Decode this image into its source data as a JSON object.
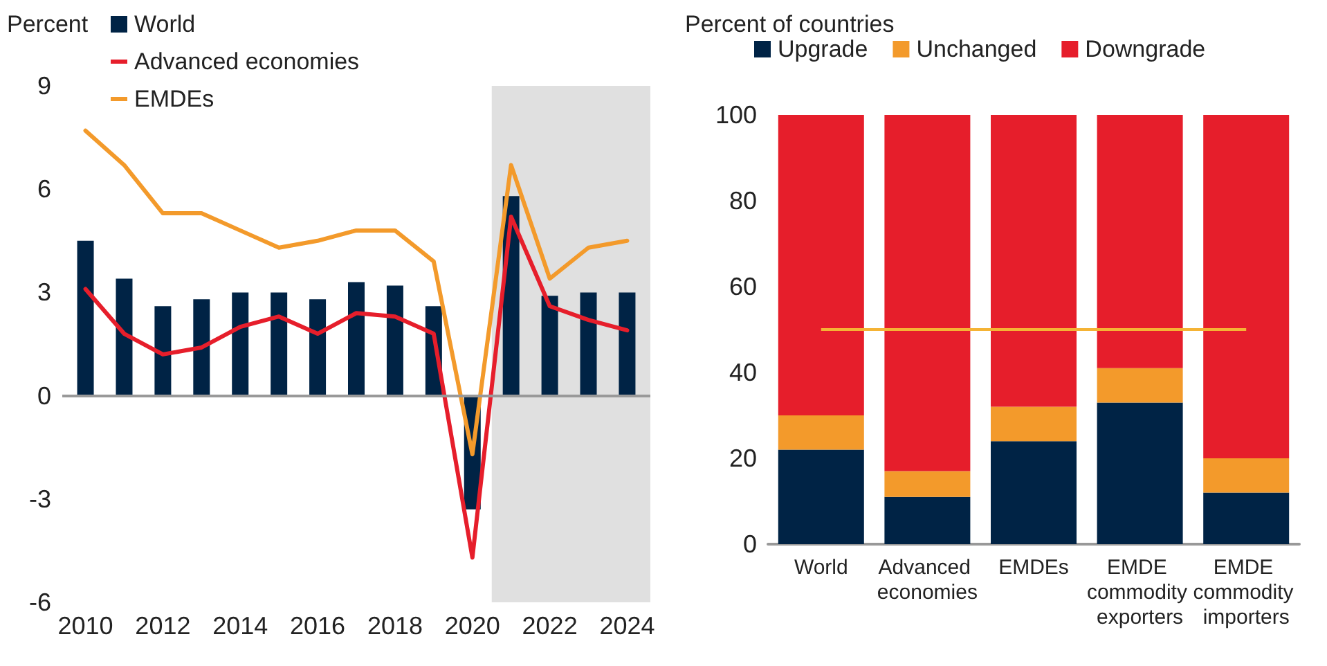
{
  "chart_data": [
    {
      "type": "bar",
      "ylabel": "Percent",
      "x": [
        2010,
        2011,
        2012,
        2013,
        2014,
        2015,
        2016,
        2017,
        2018,
        2019,
        2020,
        2021,
        2022,
        2023,
        2024
      ],
      "series": [
        {
          "name": "World",
          "type": "bar",
          "color": "#002345",
          "values": [
            4.5,
            3.4,
            2.6,
            2.8,
            3.0,
            3.0,
            2.8,
            3.3,
            3.2,
            2.6,
            -3.3,
            5.8,
            2.9,
            3.0,
            3.0
          ]
        },
        {
          "name": "Advanced economies",
          "type": "line",
          "color": "#e61e2b",
          "values": [
            3.1,
            1.8,
            1.2,
            1.4,
            2.0,
            2.3,
            1.8,
            2.4,
            2.3,
            1.8,
            -4.7,
            5.2,
            2.6,
            2.2,
            1.9
          ]
        },
        {
          "name": "EMDEs",
          "type": "line",
          "color": "#f39a2b",
          "values": [
            7.7,
            6.7,
            5.3,
            5.3,
            4.8,
            4.3,
            4.5,
            4.8,
            4.8,
            3.9,
            -1.7,
            6.7,
            3.4,
            4.3,
            4.5
          ]
        }
      ],
      "xlim": [
        2009.4,
        2024.6
      ],
      "xticks": [
        2010,
        2012,
        2014,
        2016,
        2018,
        2020,
        2022,
        2024
      ],
      "ylim": [
        -6,
        9
      ],
      "yticks": [
        -6,
        -3,
        0,
        3,
        6,
        9
      ],
      "bands": [
        {
          "axis": "x",
          "from": 2020.5,
          "to": 2024.6,
          "color": "#e0e0e0"
        }
      ],
      "ref_lines": [
        {
          "axis": "y",
          "value": 0,
          "color": "#999999"
        }
      ],
      "grid": false,
      "legend": "top left",
      "marker": "none",
      "line_style": "solid"
    },
    {
      "type": "bar",
      "stacked": true,
      "ylabel": "Percent of countries",
      "categories": [
        "World",
        "Advanced economies",
        "EMDEs",
        "EMDE commodity exporters",
        "EMDE commodity importers"
      ],
      "series": [
        {
          "name": "Upgrade",
          "color": "#002345",
          "values": [
            22,
            11,
            24,
            33,
            12
          ]
        },
        {
          "name": "Unchanged",
          "color": "#f39a2b",
          "values": [
            8,
            6,
            8,
            8,
            8
          ]
        },
        {
          "name": "Downgrade",
          "color": "#e61e2b",
          "values": [
            70,
            83,
            68,
            59,
            80
          ]
        }
      ],
      "ylim": [
        0,
        100
      ],
      "yticks": [
        0,
        20,
        40,
        60,
        80,
        100
      ],
      "ref_lines": [
        {
          "axis": "y",
          "value": 50,
          "color": "#f5b335"
        }
      ],
      "grid": false,
      "legend": "top"
    }
  ]
}
